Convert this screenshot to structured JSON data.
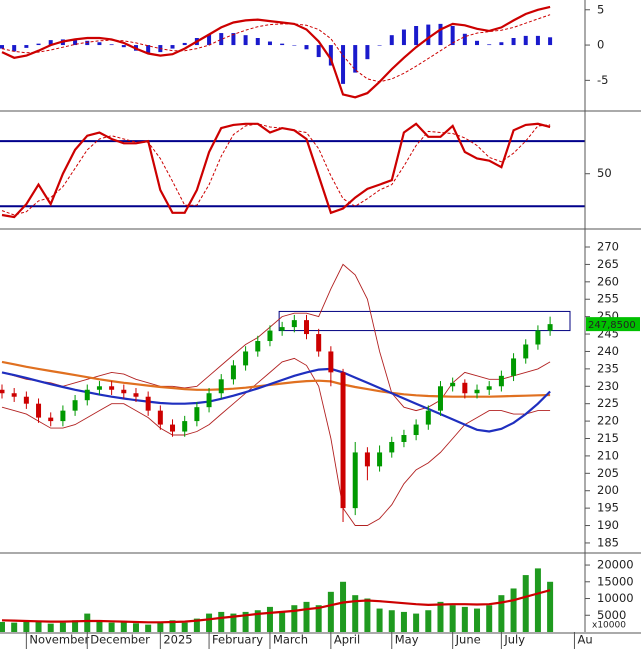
{
  "chart_data": [
    {
      "type": "macd",
      "ylim": [
        -9.2,
        6.1
      ],
      "yticks": [
        -5,
        0,
        5
      ],
      "series": [
        {
          "style": "bar",
          "color": "#1a1acc",
          "values": [
            -0.5,
            -0.9,
            -0.4,
            0.2,
            0.7,
            0.8,
            0.7,
            0.6,
            0.4,
            0.1,
            -0.3,
            -0.8,
            -1.1,
            -1,
            -0.5,
            0.3,
            1,
            1.5,
            1.7,
            1.7,
            1.4,
            1,
            0.5,
            0.2,
            0,
            -0.6,
            -1.7,
            -2.9,
            -5.5,
            -3.9,
            -2,
            0,
            1.4,
            2.2,
            2.7,
            2.9,
            3,
            2.7,
            1.6,
            0.6,
            0.1,
            0.4,
            1,
            1.3,
            1.3,
            1.1
          ]
        },
        {
          "style": "dashed",
          "color": "#cc0000",
          "values": [
            -0.5,
            -0.9,
            -1.1,
            -1,
            -0.7,
            -0.3,
            0.1,
            0.4,
            0.6,
            0.7,
            0.6,
            0.3,
            -0.1,
            -0.5,
            -0.8,
            -0.8,
            -0.5,
            0,
            0.8,
            1.5,
            2.1,
            2.6,
            2.9,
            3,
            3,
            2.8,
            2.2,
            0.9,
            -1.5,
            -3.5,
            -4.8,
            -5.2,
            -4.8,
            -4,
            -3,
            -1.9,
            -0.8,
            0.3,
            1.2,
            1.7,
            1.9,
            2.1,
            2.5,
            3.1,
            3.7,
            4.3
          ]
        },
        {
          "style": "line",
          "color": "#cc0000",
          "values": [
            -1,
            -1.8,
            -1.5,
            -0.8,
            0,
            0.5,
            0.8,
            1,
            1,
            0.8,
            0.3,
            -0.5,
            -1.2,
            -1.5,
            -1.3,
            -0.5,
            0.5,
            1.5,
            2.5,
            3.2,
            3.5,
            3.6,
            3.4,
            3.2,
            3,
            2.2,
            0.5,
            -2,
            -7,
            -7.4,
            -6.8,
            -5.2,
            -3.4,
            -1.8,
            -0.3,
            1,
            2.2,
            3,
            2.8,
            2.3,
            2,
            2.5,
            3.5,
            4.4,
            5,
            5.4
          ]
        }
      ]
    },
    {
      "type": "stochastic",
      "ylim": [
        0,
        105
      ],
      "yticks": [
        50
      ],
      "ref_lines": [
        20,
        80
      ],
      "ref_color": "#00008b",
      "series": [
        {
          "style": "dashed",
          "color": "#cc0000",
          "values": [
            16,
            12,
            15,
            25,
            28,
            38,
            55,
            72,
            82,
            85,
            82,
            79,
            79,
            64,
            43,
            21,
            21,
            40,
            66,
            86,
            94,
            96,
            93,
            92,
            90,
            88,
            73,
            48,
            27,
            20,
            27,
            35,
            40,
            57,
            76,
            89,
            88,
            87,
            83,
            76,
            65,
            61,
            69,
            80,
            94,
            95
          ]
        },
        {
          "style": "line",
          "color": "#cc0000",
          "values": [
            12,
            10,
            22,
            40,
            22,
            50,
            72,
            85,
            88,
            82,
            78,
            78,
            80,
            35,
            14,
            14,
            35,
            70,
            92,
            95,
            96,
            96,
            88,
            92,
            90,
            82,
            48,
            14,
            18,
            28,
            36,
            40,
            44,
            88,
            96,
            84,
            84,
            94,
            70,
            64,
            62,
            56,
            90,
            95,
            96,
            93
          ]
        }
      ]
    },
    {
      "type": "candlestick",
      "ylim": [
        182.4,
        274.6
      ],
      "yticks": [
        185,
        190,
        195,
        200,
        205,
        210,
        215,
        220,
        225,
        230,
        235,
        240,
        245,
        250,
        255,
        260,
        265,
        270
      ],
      "up_color": "#009900",
      "down_color": "#cc0000",
      "open": [
        229,
        228,
        227,
        225,
        221,
        220,
        223,
        226,
        229,
        230,
        229,
        228,
        227,
        223,
        219,
        217,
        220,
        224,
        228,
        232,
        236,
        240,
        243,
        246,
        247,
        249,
        245,
        240,
        234,
        195,
        211,
        207,
        211,
        214,
        216,
        219,
        223,
        230,
        231,
        228,
        229,
        230,
        233,
        238,
        242,
        246
      ],
      "high": [
        230.5,
        229.5,
        228.5,
        226.5,
        222.5,
        224.5,
        227.5,
        230.5,
        231.5,
        231.5,
        230.5,
        229.5,
        228.5,
        224.5,
        220.5,
        221.5,
        225.5,
        229.5,
        233.5,
        237.5,
        241.5,
        244.5,
        247.5,
        248.5,
        250.5,
        250.5,
        246.5,
        241.5,
        235,
        214,
        212.5,
        213,
        215.5,
        217.5,
        220.5,
        224.5,
        231.5,
        232.5,
        232,
        230.5,
        231.5,
        234.5,
        239.5,
        243.5,
        247.5,
        250
      ],
      "low": [
        226.5,
        225.5,
        223.5,
        219.5,
        218.5,
        218.5,
        221.5,
        224.5,
        227.5,
        227.5,
        226.5,
        225.5,
        221.5,
        217.5,
        215.5,
        215.5,
        218.5,
        222.5,
        226.5,
        230.5,
        234.5,
        238.5,
        241.5,
        244.5,
        245.5,
        243.5,
        238.5,
        230,
        191,
        193,
        203,
        205.5,
        209.5,
        212.5,
        214.5,
        217.5,
        221.5,
        228.5,
        226.5,
        226.5,
        227.5,
        228.5,
        231.5,
        236.5,
        240.5,
        244.5
      ],
      "close": [
        228,
        227,
        225,
        221,
        220,
        223,
        226,
        229,
        230,
        229,
        228,
        227,
        223,
        219,
        217,
        220,
        224,
        228,
        232,
        236,
        240,
        243,
        246,
        247,
        249,
        245,
        240,
        234,
        195,
        211,
        207,
        211,
        214,
        216,
        219,
        223,
        230,
        231,
        228,
        229,
        230,
        233,
        238,
        242,
        246,
        247.85
      ],
      "last_price": {
        "value": 247.85,
        "label": "247,8500"
      },
      "highlight_range": [
        246,
        251.5
      ],
      "series": [
        {
          "style": "thin",
          "color": "#b22222",
          "values": [
            234,
            233,
            232,
            231.5,
            231,
            230,
            231,
            232,
            233,
            234,
            233.5,
            232,
            231,
            230,
            230,
            229.5,
            230,
            233,
            236,
            239,
            242,
            244,
            247,
            250,
            251,
            251,
            250,
            258,
            265,
            262,
            255,
            240,
            228,
            224,
            223,
            224,
            226,
            231,
            234,
            233,
            232,
            232,
            233,
            234,
            235,
            237
          ]
        },
        {
          "style": "thin",
          "color": "#b22222",
          "values": [
            224,
            223,
            222,
            220,
            218,
            218,
            219,
            221,
            223,
            225,
            225,
            223,
            221,
            218,
            216,
            216,
            217,
            219,
            222,
            225,
            228,
            231,
            234,
            237,
            238,
            236,
            230,
            215,
            195,
            190,
            190,
            192,
            196,
            202,
            206,
            208,
            211,
            215,
            219,
            221,
            223,
            223,
            222,
            222,
            223,
            223
          ]
        },
        {
          "style": "thick",
          "color": "#e07020",
          "values": [
            237,
            236.3,
            235.6,
            235,
            234.4,
            233.8,
            233.2,
            232.6,
            232,
            231.5,
            231,
            230.6,
            230.2,
            229.8,
            229.5,
            229.2,
            229,
            229,
            229.1,
            229.3,
            229.6,
            230,
            230.4,
            230.8,
            231.2,
            231.5,
            231.6,
            231.4,
            230.5,
            229.8,
            229.2,
            228.6,
            228.1,
            227.7,
            227.4,
            227.2,
            227.1,
            227,
            227,
            227,
            227,
            227.1,
            227.2,
            227.3,
            227.4,
            227.5
          ]
        },
        {
          "style": "thick",
          "color": "#1f2fbf",
          "values": [
            234,
            233.2,
            232.4,
            231.5,
            230.6,
            229.8,
            229,
            228.3,
            227.6,
            227,
            226.5,
            226,
            225.6,
            225.2,
            225,
            225,
            225.2,
            225.6,
            226.4,
            227.3,
            228.3,
            229.4,
            230.6,
            231.8,
            233,
            234,
            234.8,
            235,
            234,
            232.5,
            231,
            229.5,
            228,
            226.5,
            225,
            223.5,
            222,
            220.5,
            219,
            217.5,
            217,
            217.8,
            219.5,
            222,
            225,
            228.5
          ]
        }
      ]
    },
    {
      "type": "bar",
      "ylim": [
        0,
        23000
      ],
      "yticks": [
        5000,
        10000,
        15000,
        20000
      ],
      "unit_label": "x10000",
      "categories": [
        null,
        null,
        "November",
        null,
        null,
        null,
        null,
        "December",
        null,
        null,
        null,
        null,
        null,
        "2025",
        null,
        null,
        null,
        "February",
        null,
        null,
        null,
        null,
        "March",
        null,
        null,
        null,
        null,
        "April",
        null,
        null,
        null,
        null,
        "May",
        null,
        null,
        null,
        null,
        "June",
        null,
        null,
        null,
        "July",
        null,
        null,
        null,
        null,
        null,
        "Au"
      ],
      "series": [
        {
          "style": "bar",
          "color": "#1f9a1f",
          "values": [
            3000,
            2800,
            3200,
            3000,
            2500,
            2800,
            3500,
            5500,
            3200,
            2800,
            3000,
            2600,
            2200,
            3000,
            3500,
            2800,
            4000,
            5500,
            6000,
            5500,
            6000,
            6500,
            7500,
            6000,
            8000,
            9000,
            8000,
            12000,
            15000,
            11000,
            10000,
            7000,
            6500,
            6000,
            5500,
            6500,
            9000,
            8000,
            7500,
            7000,
            8000,
            11000,
            13000,
            17000,
            19000,
            15000,
            null,
            null
          ]
        },
        {
          "style": "line",
          "color": "#cc0000",
          "values": [
            3500,
            3400,
            3300,
            3200,
            3100,
            3100,
            3200,
            3300,
            3300,
            3200,
            3100,
            3000,
            2900,
            2900,
            3000,
            3100,
            3400,
            3800,
            4200,
            4600,
            5000,
            5400,
            5700,
            6000,
            6300,
            6800,
            7200,
            8000,
            8800,
            9200,
            9400,
            9200,
            8900,
            8600,
            8300,
            8100,
            8200,
            8300,
            8300,
            8200,
            8300,
            8800,
            9500,
            10500,
            11500,
            12500,
            null,
            null
          ]
        }
      ]
    }
  ]
}
